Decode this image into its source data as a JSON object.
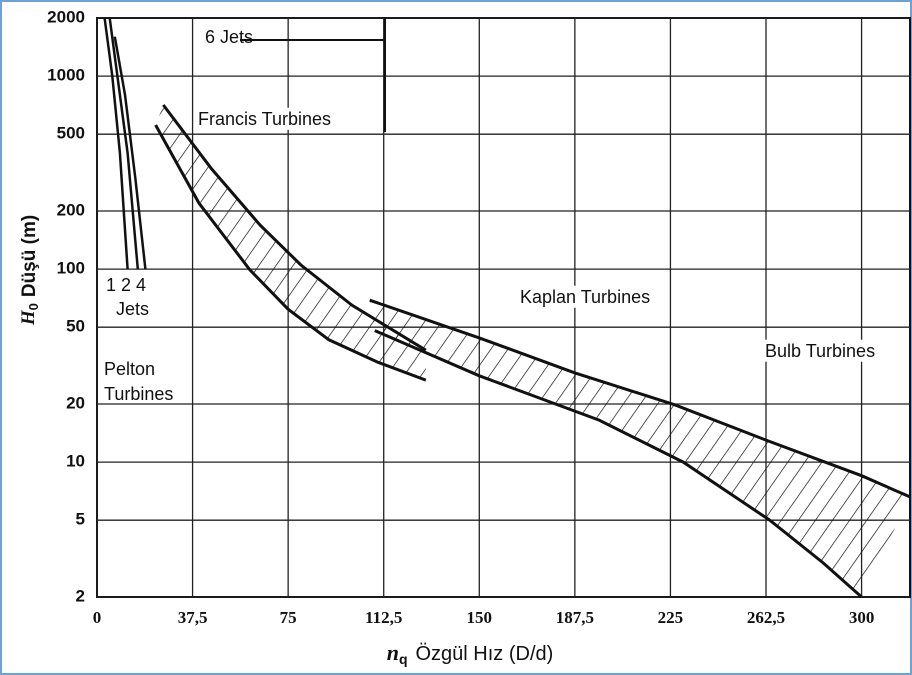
{
  "chart_data": {
    "type": "line",
    "y_label_symbol": "H",
    "y_label_sub": "0",
    "y_label_text": "Düşü  (m)",
    "x_label_symbol": "n",
    "x_label_sub": "q",
    "x_label_text": "Özgül Hız (D/d)",
    "xlim": [
      0,
      319
    ],
    "ylim": [
      2,
      2000
    ],
    "log_y": true,
    "grid": true,
    "color": "#111111",
    "xticks": [
      0,
      {
        "value": 37.5,
        "label": "37,5"
      },
      75,
      {
        "value": 112.5,
        "label": "112,5"
      },
      150,
      {
        "value": 187.5,
        "label": "187,5"
      },
      225,
      {
        "value": 262.5,
        "label": "262,5"
      },
      300
    ],
    "yticks": [
      2,
      5,
      10,
      20,
      50,
      100,
      200,
      500,
      1000,
      2000
    ],
    "annotations": [
      "6 Jets",
      "Francis Turbines",
      "1 2 4",
      "Jets",
      "Pelton",
      "Turbines",
      "Kaplan Turbines",
      "Bulb Turbines"
    ],
    "regions": [
      {
        "upper": {
          "x": [
            26,
            45,
            64,
            80,
            100,
            129
          ],
          "y": [
            708,
            330,
            169,
            105,
            65,
            38
          ]
        },
        "lower": {
          "x": [
            23,
            40,
            60,
            75,
            91,
            110,
            129
          ],
          "y": [
            558,
            220,
            99,
            62,
            43,
            33,
            26.6
          ]
        }
      },
      {
        "upper": {
          "x": [
            107,
            150,
            187.5,
            226.7,
            262.5,
            300,
            319
          ],
          "y": [
            69,
            44,
            29,
            19.8,
            13,
            8.5,
            6.6
          ]
        },
        "lower": {
          "x": [
            109,
            150,
            197,
            230,
            264,
            285,
            300
          ],
          "y": [
            48,
            28,
            16.5,
            10,
            5,
            3,
            2
          ]
        }
      }
    ],
    "pelton_lines": [
      {
        "x": [
          3,
          6,
          9,
          12
        ],
        "y": [
          2000,
          1000,
          400,
          100
        ]
      },
      {
        "x": [
          5,
          8,
          12,
          16
        ],
        "y": [
          2000,
          1000,
          400,
          100
        ]
      },
      {
        "x": [
          7,
          11,
          15,
          19
        ],
        "y": [
          1600,
          800,
          300,
          100
        ]
      }
    ]
  }
}
